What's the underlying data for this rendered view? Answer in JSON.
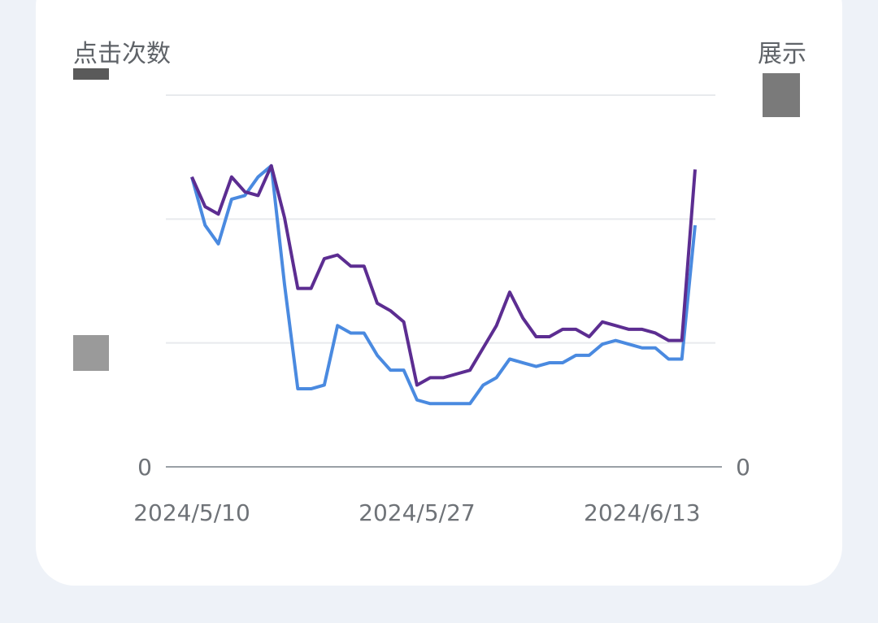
{
  "chart_data": {
    "type": "line",
    "ylabel_left": "点击次数",
    "ylabel_right": "展示",
    "y_left_zero_label": "0",
    "y_right_zero_label": "0",
    "x_tick_labels": [
      "2024/5/10",
      "2024/5/27",
      "2024/6/13"
    ],
    "x": [
      "2024/5/10",
      "2024/5/11",
      "2024/5/12",
      "2024/5/13",
      "2024/5/14",
      "2024/5/15",
      "2024/5/16",
      "2024/5/17",
      "2024/5/18",
      "2024/5/19",
      "2024/5/20",
      "2024/5/21",
      "2024/5/22",
      "2024/5/23",
      "2024/5/24",
      "2024/5/25",
      "2024/5/26",
      "2024/5/27",
      "2024/5/28",
      "2024/5/29",
      "2024/5/30",
      "2024/5/31",
      "2024/6/1",
      "2024/6/2",
      "2024/6/3",
      "2024/6/4",
      "2024/6/5",
      "2024/6/6",
      "2024/6/7",
      "2024/6/8",
      "2024/6/9",
      "2024/6/10",
      "2024/6/11",
      "2024/6/12",
      "2024/6/13",
      "2024/6/14",
      "2024/6/15",
      "2024/6/16",
      "2024/6/17"
    ],
    "series": [
      {
        "color": "#5c2d91",
        "values": [
          0.78,
          0.7,
          0.68,
          0.78,
          0.74,
          0.73,
          0.81,
          0.67,
          0.48,
          0.48,
          0.56,
          0.57,
          0.54,
          0.54,
          0.44,
          0.42,
          0.39,
          0.22,
          0.24,
          0.24,
          0.25,
          0.26,
          0.32,
          0.38,
          0.47,
          0.4,
          0.35,
          0.35,
          0.37,
          0.37,
          0.35,
          0.39,
          0.38,
          0.37,
          0.37,
          0.36,
          0.34,
          0.34,
          0.8
        ]
      },
      {
        "color": "#4a8ae0",
        "values": [
          0.78,
          0.65,
          0.6,
          0.72,
          0.73,
          0.78,
          0.81,
          0.49,
          0.21,
          0.21,
          0.22,
          0.38,
          0.36,
          0.36,
          0.3,
          0.26,
          0.26,
          0.18,
          0.17,
          0.17,
          0.17,
          0.17,
          0.22,
          0.24,
          0.29,
          0.28,
          0.27,
          0.28,
          0.28,
          0.3,
          0.3,
          0.33,
          0.34,
          0.33,
          0.32,
          0.32,
          0.29,
          0.29,
          0.65
        ]
      }
    ],
    "grid": true,
    "legend": "none"
  }
}
